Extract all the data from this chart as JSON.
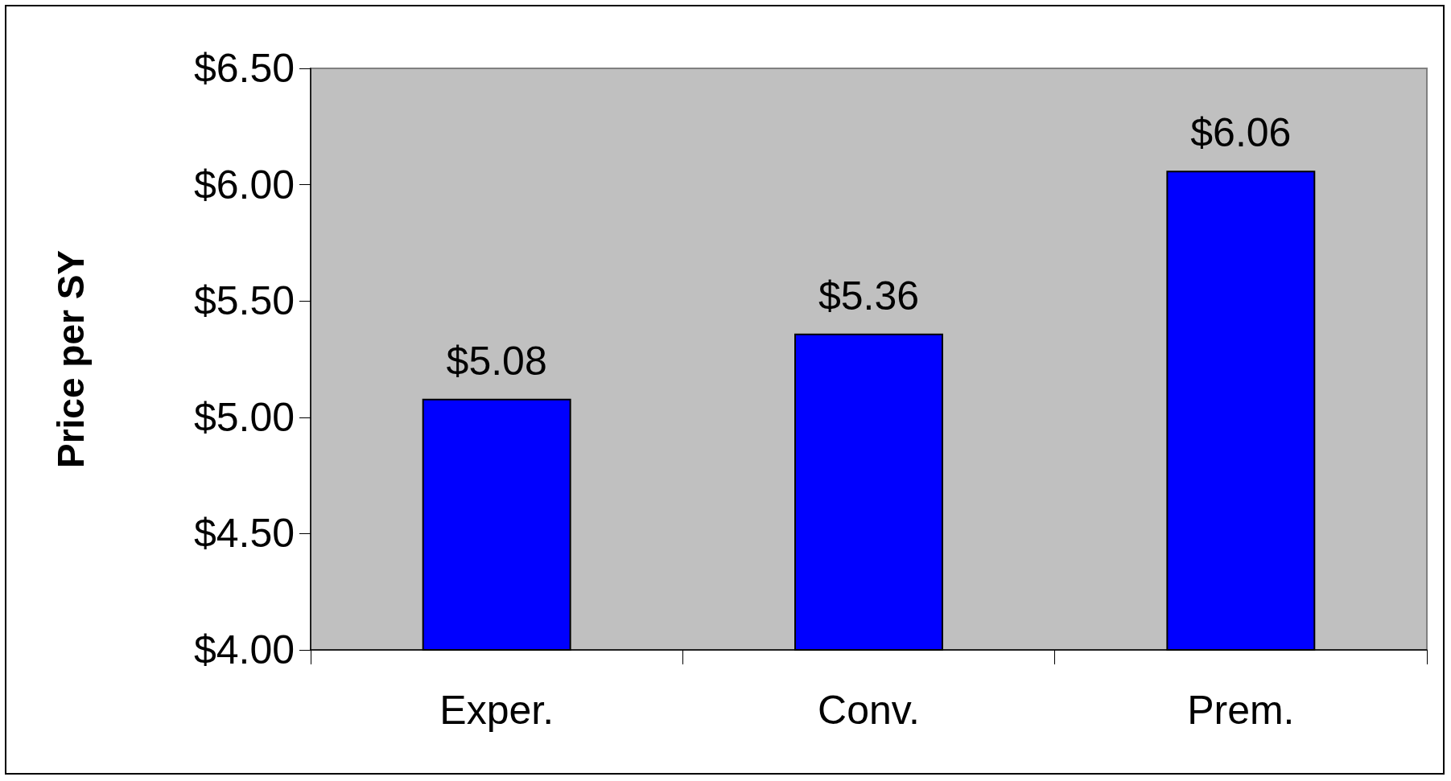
{
  "chart_data": {
    "type": "bar",
    "ylabel": "Price per SY",
    "categories": [
      "Exper.",
      "Conv.",
      "Prem."
    ],
    "values": [
      5.08,
      5.36,
      6.06
    ],
    "color": "#0000ff",
    "value_labels": [
      "$5.08",
      "$5.36",
      "$6.06"
    ],
    "ylim": [
      4,
      6.5
    ],
    "yticks": [
      {
        "value": 4,
        "label": "$4.00"
      },
      {
        "value": 4.5,
        "label": "$4.50"
      },
      {
        "value": 5,
        "label": "$5.00"
      },
      {
        "value": 5.5,
        "label": "$5.50"
      },
      {
        "value": 6,
        "label": "$6.00"
      },
      {
        "value": 6.5,
        "label": "$6.50"
      }
    ],
    "grid": false
  }
}
